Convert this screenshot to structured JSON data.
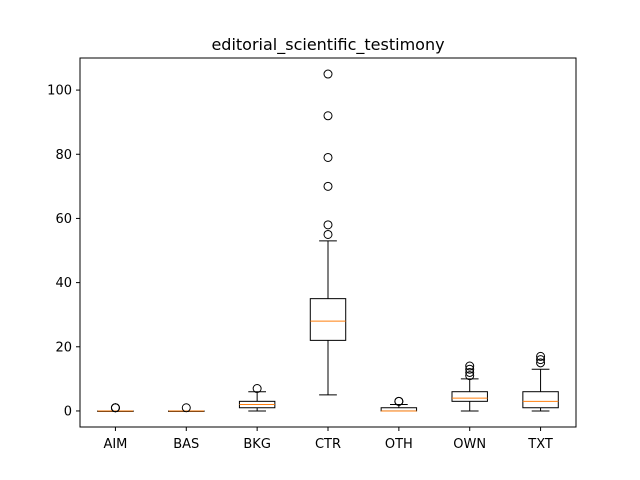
{
  "chart_data": {
    "type": "box",
    "title": "editorial_scientific_testimony",
    "xlabel": "",
    "ylabel": "",
    "ylim": [
      -5,
      110
    ],
    "yticks": [
      0,
      20,
      40,
      60,
      80,
      100
    ],
    "grid": false,
    "colors": {
      "box": "#000000",
      "median": "#ff7f0e",
      "flier": "#000000"
    },
    "categories": [
      "AIM",
      "BAS",
      "BKG",
      "CTR",
      "OTH",
      "OWN",
      "TXT"
    ],
    "boxes": [
      {
        "label": "AIM",
        "whislo": 0,
        "q1": 0,
        "med": 0,
        "q3": 0,
        "whishi": 0,
        "fliers": [
          1,
          1,
          1
        ]
      },
      {
        "label": "BAS",
        "whislo": 0,
        "q1": 0,
        "med": 0,
        "q3": 0,
        "whishi": 0,
        "fliers": [
          1
        ]
      },
      {
        "label": "BKG",
        "whislo": 0,
        "q1": 1,
        "med": 2,
        "q3": 3,
        "whishi": 6,
        "fliers": [
          7
        ]
      },
      {
        "label": "CTR",
        "whislo": 5,
        "q1": 22,
        "med": 28,
        "q3": 35,
        "whishi": 53,
        "fliers": [
          55,
          58,
          70,
          79,
          92,
          105
        ]
      },
      {
        "label": "OTH",
        "whislo": 0,
        "q1": 0,
        "med": 0,
        "q3": 1,
        "whishi": 2,
        "fliers": [
          3,
          3
        ]
      },
      {
        "label": "OWN",
        "whislo": 0,
        "q1": 3,
        "med": 4,
        "q3": 6,
        "whishi": 10,
        "fliers": [
          11,
          12,
          13,
          14
        ]
      },
      {
        "label": "TXT",
        "whislo": 0,
        "q1": 1,
        "med": 3,
        "q3": 6,
        "whishi": 13,
        "fliers": [
          15,
          16,
          17
        ]
      }
    ]
  }
}
